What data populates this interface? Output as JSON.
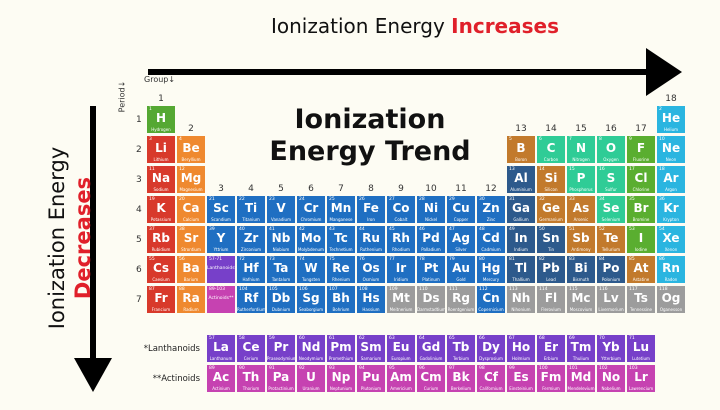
{
  "top_arrow": {
    "text": "Ionization Energy ",
    "highlight": "Increases"
  },
  "side_arrow": {
    "text": "Ionization Energy",
    "highlight": "Decreases"
  },
  "title": {
    "line1": "Ionization",
    "line2": "Energy Trend"
  },
  "group_label": "Group↓",
  "period_label": "Period↓",
  "colors": {
    "accent_red": "#e0202a",
    "hydrogen": "#55a833",
    "alkali": "#d8392b",
    "alkaline": "#ef892f",
    "transition": "#1f6fc2",
    "post": "#2d5a8c",
    "metalloid": "#c27a2c",
    "nonmetal": "#2fcc96",
    "halogen": "#5aae30",
    "noble": "#2ab5e0",
    "unknown": "#9c9c9c",
    "lanthanoid": "#7740c9",
    "actinoid": "#c642b1"
  },
  "groups": [
    "1",
    "2",
    "3",
    "4",
    "5",
    "6",
    "7",
    "8",
    "9",
    "10",
    "11",
    "12",
    "13",
    "14",
    "15",
    "16",
    "17",
    "18"
  ],
  "periods": [
    "1",
    "2",
    "3",
    "4",
    "5",
    "6",
    "7"
  ],
  "placeholders": [
    {
      "range": "57-71",
      "label": "Lanthanoids*",
      "cat": "lanthanoid",
      "period": 6
    },
    {
      "range": "89-103",
      "label": "Actinoids**",
      "cat": "actinoid",
      "period": 7
    }
  ],
  "f_labels": {
    "lanthanoids": "*Lanthanoids",
    "actinoids": "**Actinoids"
  },
  "elements": [
    [
      1,
      "H",
      "Hydrogen",
      "hydrogen",
      1,
      1
    ],
    [
      2,
      "He",
      "Helium",
      "noble",
      18,
      1
    ],
    [
      3,
      "Li",
      "Lithium",
      "alkali",
      1,
      2
    ],
    [
      4,
      "Be",
      "Beryllium",
      "alkaline",
      2,
      2
    ],
    [
      5,
      "B",
      "Boron",
      "metalloid",
      13,
      2
    ],
    [
      6,
      "C",
      "Carbon",
      "nonmetal",
      14,
      2
    ],
    [
      7,
      "N",
      "Nitrogen",
      "nonmetal",
      15,
      2
    ],
    [
      8,
      "O",
      "Oxygen",
      "nonmetal",
      16,
      2
    ],
    [
      9,
      "F",
      "Fluorine",
      "halogen",
      17,
      2
    ],
    [
      10,
      "Ne",
      "Neon",
      "noble",
      18,
      2
    ],
    [
      11,
      "Na",
      "Sodium",
      "alkali",
      1,
      3
    ],
    [
      12,
      "Mg",
      "Magnesium",
      "alkaline",
      2,
      3
    ],
    [
      13,
      "Al",
      "Aluminium",
      "post",
      13,
      3
    ],
    [
      14,
      "Si",
      "Silicon",
      "metalloid",
      14,
      3
    ],
    [
      15,
      "P",
      "Phosphorus",
      "nonmetal",
      15,
      3
    ],
    [
      16,
      "S",
      "Sulfur",
      "nonmetal",
      16,
      3
    ],
    [
      17,
      "Cl",
      "Chlorine",
      "halogen",
      17,
      3
    ],
    [
      18,
      "Ar",
      "Argon",
      "noble",
      18,
      3
    ],
    [
      19,
      "K",
      "Potassium",
      "alkali",
      1,
      4
    ],
    [
      20,
      "Ca",
      "Calcium",
      "alkaline",
      2,
      4
    ],
    [
      21,
      "Sc",
      "Scandium",
      "transition",
      3,
      4
    ],
    [
      22,
      "Ti",
      "Titanium",
      "transition",
      4,
      4
    ],
    [
      23,
      "V",
      "Vanadium",
      "transition",
      5,
      4
    ],
    [
      24,
      "Cr",
      "Chromium",
      "transition",
      6,
      4
    ],
    [
      25,
      "Mn",
      "Manganese",
      "transition",
      7,
      4
    ],
    [
      26,
      "Fe",
      "Iron",
      "transition",
      8,
      4
    ],
    [
      27,
      "Co",
      "Cobalt",
      "transition",
      9,
      4
    ],
    [
      28,
      "Ni",
      "Nickel",
      "transition",
      10,
      4
    ],
    [
      29,
      "Cu",
      "Copper",
      "transition",
      11,
      4
    ],
    [
      30,
      "Zn",
      "Zinc",
      "transition",
      12,
      4
    ],
    [
      31,
      "Ga",
      "Gallium",
      "post",
      13,
      4
    ],
    [
      32,
      "Ge",
      "Germanium",
      "metalloid",
      14,
      4
    ],
    [
      33,
      "As",
      "Arsenic",
      "metalloid",
      15,
      4
    ],
    [
      34,
      "Se",
      "Selenium",
      "nonmetal",
      16,
      4
    ],
    [
      35,
      "Br",
      "Bromine",
      "halogen",
      17,
      4
    ],
    [
      36,
      "Kr",
      "Krypton",
      "noble",
      18,
      4
    ],
    [
      37,
      "Rb",
      "Rubidium",
      "alkali",
      1,
      5
    ],
    [
      38,
      "Sr",
      "Strontium",
      "alkaline",
      2,
      5
    ],
    [
      39,
      "Y",
      "Yttrium",
      "transition",
      3,
      5
    ],
    [
      40,
      "Zr",
      "Zirconium",
      "transition",
      4,
      5
    ],
    [
      41,
      "Nb",
      "Niobium",
      "transition",
      5,
      5
    ],
    [
      42,
      "Mo",
      "Molybdenum",
      "transition",
      6,
      5
    ],
    [
      43,
      "Tc",
      "Technetium",
      "transition",
      7,
      5
    ],
    [
      44,
      "Ru",
      "Ruthenium",
      "transition",
      8,
      5
    ],
    [
      45,
      "Rh",
      "Rhodium",
      "transition",
      9,
      5
    ],
    [
      46,
      "Pd",
      "Palladium",
      "transition",
      10,
      5
    ],
    [
      47,
      "Ag",
      "Silver",
      "transition",
      11,
      5
    ],
    [
      48,
      "Cd",
      "Cadmium",
      "transition",
      12,
      5
    ],
    [
      49,
      "In",
      "Indium",
      "post",
      13,
      5
    ],
    [
      50,
      "Sn",
      "Tin",
      "post",
      14,
      5
    ],
    [
      51,
      "Sb",
      "Antimony",
      "metalloid",
      15,
      5
    ],
    [
      52,
      "Te",
      "Tellurium",
      "metalloid",
      16,
      5
    ],
    [
      53,
      "I",
      "Iodine",
      "halogen",
      17,
      5
    ],
    [
      54,
      "Xe",
      "Xenon",
      "noble",
      18,
      5
    ],
    [
      55,
      "Cs",
      "Caesium",
      "alkali",
      1,
      6
    ],
    [
      56,
      "Ba",
      "Barium",
      "alkaline",
      2,
      6
    ],
    [
      72,
      "Hf",
      "Hafnium",
      "transition",
      4,
      6
    ],
    [
      73,
      "Ta",
      "Tantalum",
      "transition",
      5,
      6
    ],
    [
      74,
      "W",
      "Tungsten",
      "transition",
      6,
      6
    ],
    [
      75,
      "Re",
      "Rhenium",
      "transition",
      7,
      6
    ],
    [
      76,
      "Os",
      "Osmium",
      "transition",
      8,
      6
    ],
    [
      77,
      "Ir",
      "Iridium",
      "transition",
      9,
      6
    ],
    [
      78,
      "Pt",
      "Platinum",
      "transition",
      10,
      6
    ],
    [
      79,
      "Au",
      "Gold",
      "transition",
      11,
      6
    ],
    [
      80,
      "Hg",
      "Mercury",
      "transition",
      12,
      6
    ],
    [
      81,
      "Tl",
      "Thallium",
      "post",
      13,
      6
    ],
    [
      82,
      "Pb",
      "Lead",
      "post",
      14,
      6
    ],
    [
      83,
      "Bi",
      "Bismuth",
      "post",
      15,
      6
    ],
    [
      84,
      "Po",
      "Polonium",
      "post",
      16,
      6
    ],
    [
      85,
      "At",
      "Astatine",
      "metalloid",
      17,
      6
    ],
    [
      86,
      "Rn",
      "Radon",
      "noble",
      18,
      6
    ],
    [
      87,
      "Fr",
      "Francium",
      "alkali",
      1,
      7
    ],
    [
      88,
      "Ra",
      "Radium",
      "alkaline",
      2,
      7
    ],
    [
      104,
      "Rf",
      "Rutherfordium",
      "transition",
      4,
      7
    ],
    [
      105,
      "Db",
      "Dubnium",
      "transition",
      5,
      7
    ],
    [
      106,
      "Sg",
      "Seaborgium",
      "transition",
      6,
      7
    ],
    [
      107,
      "Bh",
      "Bohrium",
      "transition",
      7,
      7
    ],
    [
      108,
      "Hs",
      "Hassium",
      "transition",
      8,
      7
    ],
    [
      109,
      "Mt",
      "Meitnerium",
      "unknown",
      9,
      7
    ],
    [
      110,
      "Ds",
      "Darmstadtium",
      "unknown",
      10,
      7
    ],
    [
      111,
      "Rg",
      "Roentgenium",
      "unknown",
      11,
      7
    ],
    [
      112,
      "Cn",
      "Copernicium",
      "transition",
      12,
      7
    ],
    [
      113,
      "Nh",
      "Nihonium",
      "unknown",
      13,
      7
    ],
    [
      114,
      "Fl",
      "Flerovium",
      "unknown",
      14,
      7
    ],
    [
      115,
      "Mc",
      "Moscovium",
      "unknown",
      15,
      7
    ],
    [
      116,
      "Lv",
      "Livermorium",
      "unknown",
      16,
      7
    ],
    [
      117,
      "Ts",
      "Tennessine",
      "unknown",
      17,
      7
    ],
    [
      118,
      "Og",
      "Oganesson",
      "unknown",
      18,
      7
    ]
  ],
  "lanthanoids": [
    [
      57,
      "La",
      "Lanthanum"
    ],
    [
      58,
      "Ce",
      "Cerium"
    ],
    [
      59,
      "Pr",
      "Praseodymium"
    ],
    [
      60,
      "Nd",
      "Neodymium"
    ],
    [
      61,
      "Pm",
      "Promethium"
    ],
    [
      62,
      "Sm",
      "Samarium"
    ],
    [
      63,
      "Eu",
      "Europium"
    ],
    [
      64,
      "Gd",
      "Gadolinium"
    ],
    [
      65,
      "Tb",
      "Terbium"
    ],
    [
      66,
      "Dy",
      "Dysprosium"
    ],
    [
      67,
      "Ho",
      "Holmium"
    ],
    [
      68,
      "Er",
      "Erbium"
    ],
    [
      69,
      "Tm",
      "Thulium"
    ],
    [
      70,
      "Yb",
      "Ytterbium"
    ],
    [
      71,
      "Lu",
      "Lutetium"
    ]
  ],
  "actinoids": [
    [
      89,
      "Ac",
      "Actinium"
    ],
    [
      90,
      "Th",
      "Thorium"
    ],
    [
      91,
      "Pa",
      "Protactinium"
    ],
    [
      92,
      "U",
      "Uranium"
    ],
    [
      93,
      "Np",
      "Neptunium"
    ],
    [
      94,
      "Pu",
      "Plutonium"
    ],
    [
      95,
      "Am",
      "Americium"
    ],
    [
      96,
      "Cm",
      "Curium"
    ],
    [
      97,
      "Bk",
      "Berkelium"
    ],
    [
      98,
      "Cf",
      "Californium"
    ],
    [
      99,
      "Es",
      "Einsteinium"
    ],
    [
      100,
      "Fm",
      "Fermium"
    ],
    [
      101,
      "Md",
      "Mendelevium"
    ],
    [
      102,
      "No",
      "Nobelium"
    ],
    [
      103,
      "Lr",
      "Lawrencium"
    ]
  ]
}
